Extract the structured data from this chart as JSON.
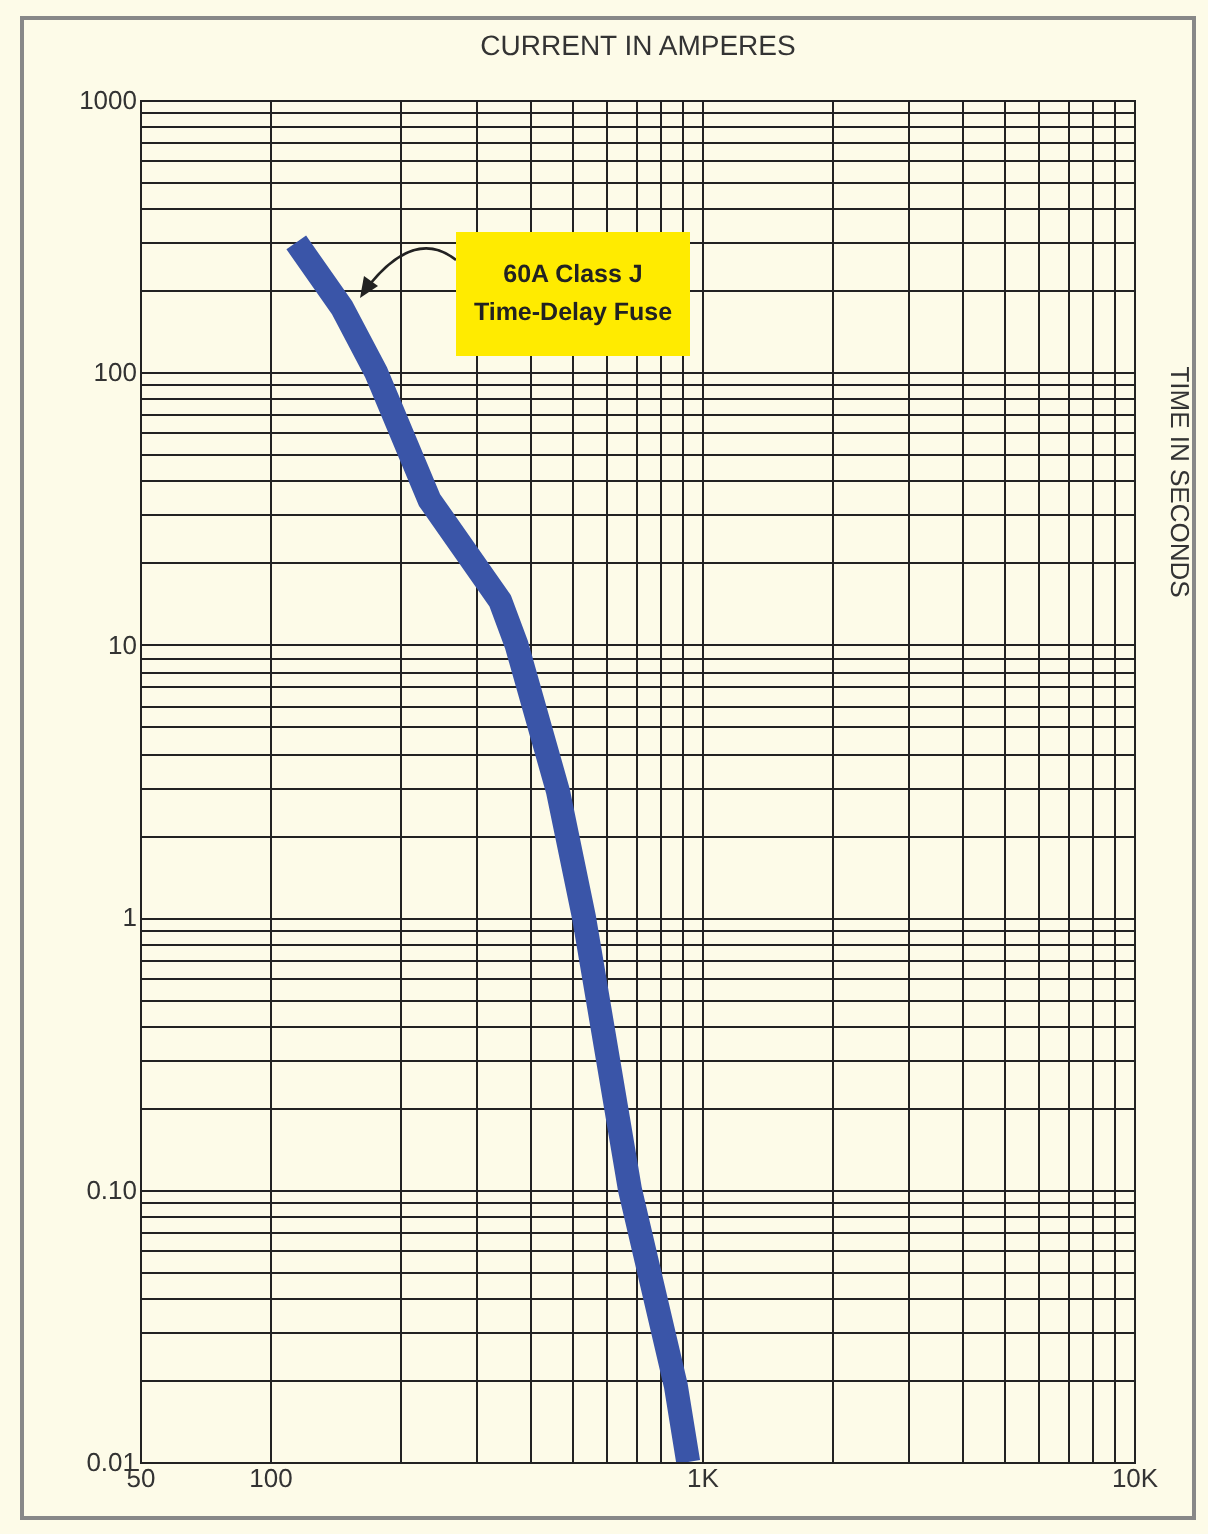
{
  "chart_data": {
    "type": "line",
    "xlabel": "CURRENT IN AMPERES",
    "ylabel": "TIME IN SECONDS",
    "log": "xy",
    "grid": true,
    "marker": "none",
    "line_style": "solid",
    "xlim": [
      50,
      10000
    ],
    "ylim": [
      0.01,
      1000
    ],
    "xticks": [
      50,
      100,
      {
        "value": 200,
        "label": null
      },
      {
        "value": 300,
        "label": null
      },
      {
        "value": 400,
        "label": null
      },
      {
        "value": 500,
        "label": null
      },
      {
        "value": 600,
        "label": null
      },
      {
        "value": 700,
        "label": null
      },
      {
        "value": 800,
        "label": null
      },
      {
        "value": 900,
        "label": null
      },
      {
        "value": 1000,
        "label": "1K"
      },
      {
        "value": 2000,
        "label": null
      },
      {
        "value": 3000,
        "label": null
      },
      {
        "value": 4000,
        "label": null
      },
      {
        "value": 5000,
        "label": null
      },
      {
        "value": 6000,
        "label": null
      },
      {
        "value": 7000,
        "label": null
      },
      {
        "value": 8000,
        "label": null
      },
      {
        "value": 9000,
        "label": null
      },
      {
        "value": 10000,
        "label": "10K"
      }
    ],
    "yticks": [
      {
        "value": 0.01,
        "label": "0.01"
      },
      {
        "value": 0.02,
        "label": null
      },
      {
        "value": 0.03,
        "label": null
      },
      {
        "value": 0.04,
        "label": null
      },
      {
        "value": 0.05,
        "label": null
      },
      {
        "value": 0.06,
        "label": null
      },
      {
        "value": 0.07,
        "label": null
      },
      {
        "value": 0.08,
        "label": null
      },
      {
        "value": 0.09,
        "label": null
      },
      {
        "value": 0.1,
        "label": "0.10"
      },
      {
        "value": 0.2,
        "label": null
      },
      {
        "value": 0.3,
        "label": null
      },
      {
        "value": 0.4,
        "label": null
      },
      {
        "value": 0.5,
        "label": null
      },
      {
        "value": 0.6,
        "label": null
      },
      {
        "value": 0.7,
        "label": null
      },
      {
        "value": 0.8,
        "label": null
      },
      {
        "value": 0.9,
        "label": null
      },
      1,
      {
        "value": 2,
        "label": null
      },
      {
        "value": 3,
        "label": null
      },
      {
        "value": 4,
        "label": null
      },
      {
        "value": 5,
        "label": null
      },
      {
        "value": 6,
        "label": null
      },
      {
        "value": 7,
        "label": null
      },
      {
        "value": 8,
        "label": null
      },
      {
        "value": 9,
        "label": null
      },
      10,
      {
        "value": 20,
        "label": null
      },
      {
        "value": 30,
        "label": null
      },
      {
        "value": 40,
        "label": null
      },
      {
        "value": 50,
        "label": null
      },
      {
        "value": 60,
        "label": null
      },
      {
        "value": 70,
        "label": null
      },
      {
        "value": 80,
        "label": null
      },
      {
        "value": 90,
        "label": null
      },
      100,
      {
        "value": 200,
        "label": null
      },
      {
        "value": 300,
        "label": null
      },
      {
        "value": 400,
        "label": null
      },
      {
        "value": 500,
        "label": null
      },
      {
        "value": 600,
        "label": null
      },
      {
        "value": 700,
        "label": null
      },
      {
        "value": 800,
        "label": null
      },
      {
        "value": 900,
        "label": null
      },
      1000
    ],
    "annotations": [
      "60A Class J Time-Delay Fuse"
    ],
    "series": [
      {
        "color": "#3a55a8",
        "x": [
          115,
          147,
          176,
          234,
          341,
          372,
          464,
          533,
          681,
          774,
          870,
          929
        ],
        "values": [
          300,
          172,
          100,
          34,
          14.5,
          10,
          2.9,
          1,
          0.1,
          0.042,
          0.019,
          0.01
        ]
      }
    ]
  }
}
